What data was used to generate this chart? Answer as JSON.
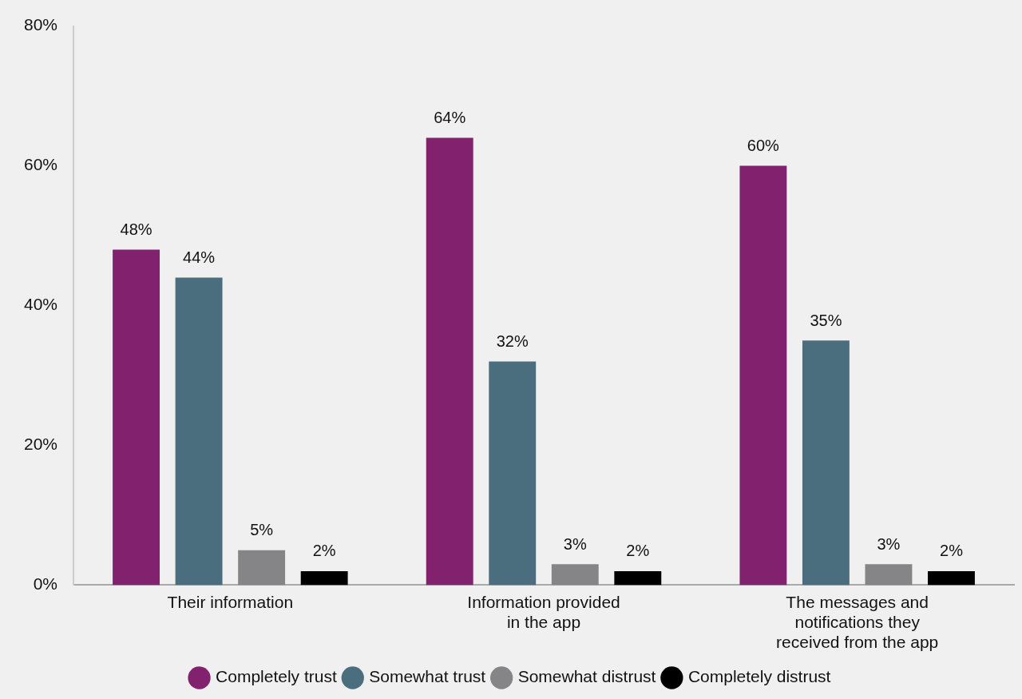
{
  "chart_data": {
    "type": "bar",
    "categories": [
      "Their information",
      "Information provided in the app",
      "The messages and notifications they received from the app"
    ],
    "series": [
      {
        "name": "Completely trust",
        "color": "#82216d",
        "values": [
          48,
          64,
          60
        ],
        "value_labels": [
          "48%",
          "64%",
          "60%"
        ]
      },
      {
        "name": "Somewhat trust",
        "color": "#4b6e7e",
        "values": [
          44,
          32,
          35
        ],
        "value_labels": [
          "44%",
          "32%",
          "35%"
        ]
      },
      {
        "name": "Somewhat distrust",
        "color": "#858487",
        "values": [
          5,
          3,
          3
        ],
        "value_labels": [
          "5%",
          "3%",
          "3%"
        ]
      },
      {
        "name": "Completely distrust",
        "color": "#000000",
        "values": [
          2,
          2,
          2
        ],
        "value_labels": [
          "2%",
          "2%",
          "2%"
        ]
      }
    ],
    "ylim": [
      0,
      80
    ],
    "yticks": [
      {
        "value": 0,
        "label": "0%"
      },
      {
        "value": 20,
        "label": "20%"
      },
      {
        "value": 40,
        "label": "40%"
      },
      {
        "value": 60,
        "label": "60%"
      },
      {
        "value": 80,
        "label": "80%"
      }
    ],
    "grid": false,
    "legend": "bottom"
  }
}
